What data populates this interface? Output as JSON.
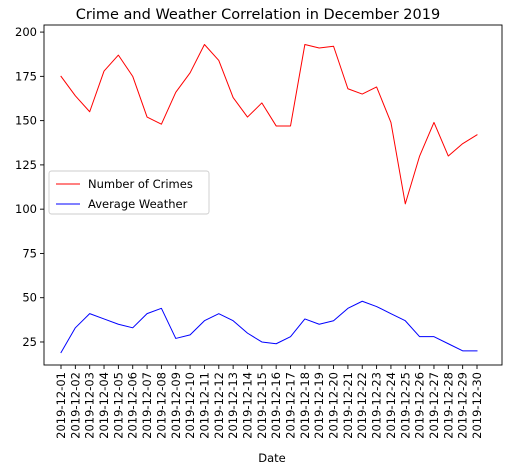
{
  "chart_data": {
    "type": "line",
    "title": "Crime and Weather Correlation in December 2019",
    "xlabel": "Date",
    "ylabel": "",
    "categories": [
      "2019-12-01",
      "2019-12-02",
      "2019-12-03",
      "2019-12-04",
      "2019-12-05",
      "2019-12-06",
      "2019-12-07",
      "2019-12-08",
      "2019-12-09",
      "2019-12-10",
      "2019-12-11",
      "2019-12-12",
      "2019-12-13",
      "2019-12-14",
      "2019-12-15",
      "2019-12-16",
      "2019-12-17",
      "2019-12-18",
      "2019-12-19",
      "2019-12-20",
      "2019-12-21",
      "2019-12-22",
      "2019-12-23",
      "2019-12-24",
      "2019-12-25",
      "2019-12-26",
      "2019-12-27",
      "2019-12-28",
      "2019-12-29",
      "2019-12-30"
    ],
    "ylim": [
      12,
      204
    ],
    "yticks": [
      25,
      50,
      75,
      100,
      125,
      150,
      175,
      200
    ],
    "grid": false,
    "legend_position": "center-left",
    "series": [
      {
        "name": "Number of Crimes",
        "color": "#ff0000",
        "values": [
          175,
          164,
          155,
          178,
          187,
          175,
          152,
          148,
          166,
          177,
          193,
          184,
          163,
          152,
          160,
          147,
          147,
          193,
          191,
          192,
          168,
          165,
          169,
          149,
          103,
          130,
          149,
          130,
          137,
          142
        ]
      },
      {
        "name": "Average Weather",
        "color": "#0000ff",
        "values": [
          19,
          33,
          41,
          38,
          35,
          33,
          41,
          44,
          27,
          29,
          37,
          41,
          37,
          30,
          25,
          24,
          28,
          38,
          35,
          37,
          44,
          48,
          45,
          41,
          37,
          28,
          28,
          24,
          20,
          20
        ]
      }
    ]
  }
}
